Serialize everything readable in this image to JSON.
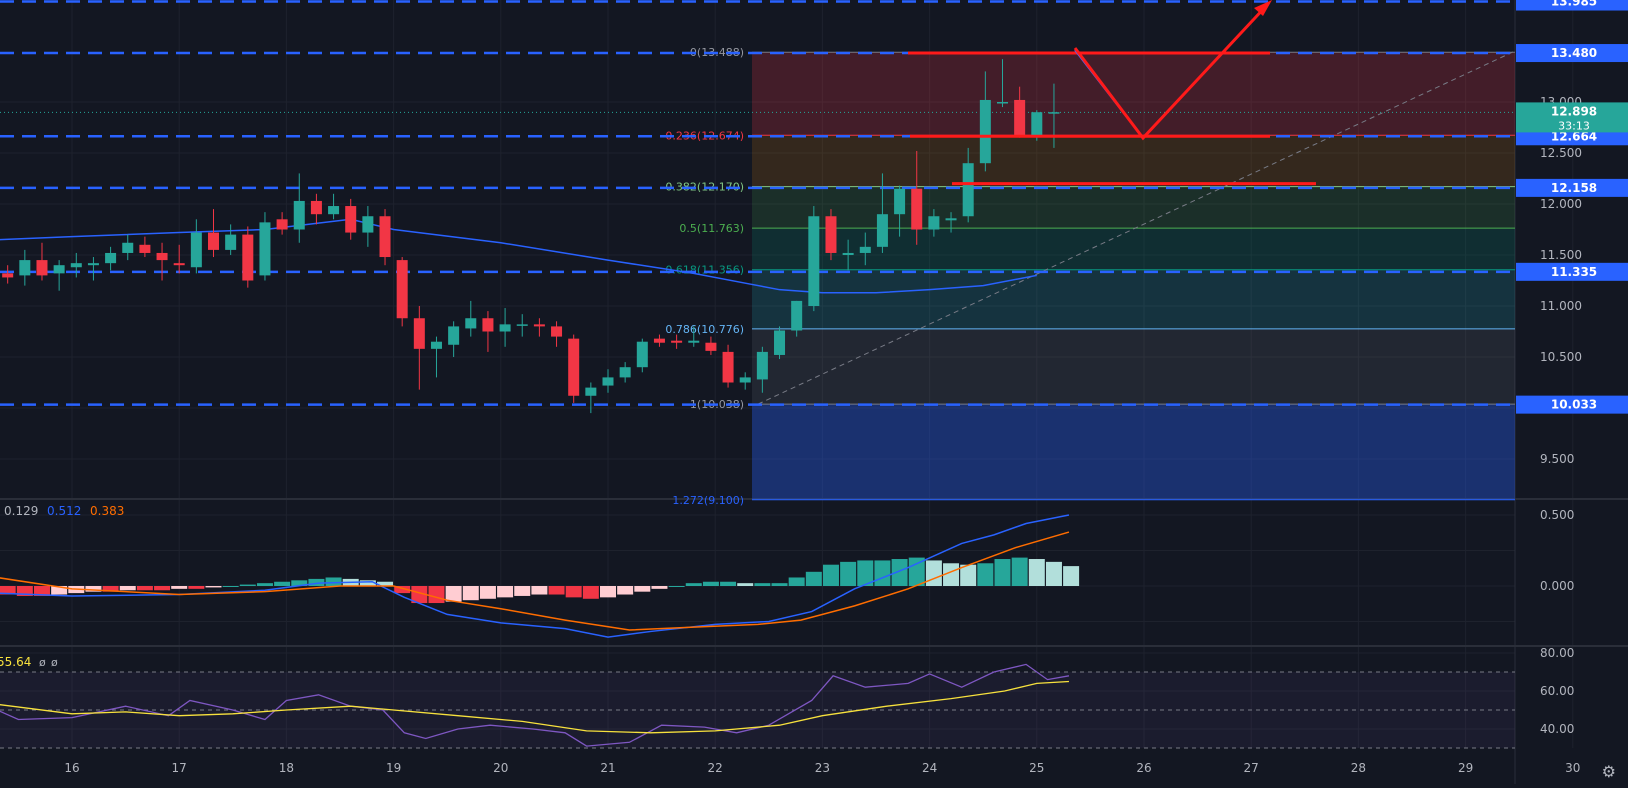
{
  "colors": {
    "background": "#131722",
    "grid": "#1e222d",
    "axis_text": "#b2b5be",
    "candle_up": "#26a69a",
    "candle_down": "#f23645",
    "level_line": "#2962ff",
    "ma_line": "#2962ff",
    "annotation": "#ff1a1a",
    "macd_line": "#2962ff",
    "signal_line": "#ff6d00",
    "rsi_line": "#7e57c2",
    "rsi_ma_line": "#f7e13d"
  },
  "chart_data": [
    {
      "type": "candlestick",
      "panel": "price",
      "x_tick_labels": [
        "16",
        "17",
        "18",
        "19",
        "20",
        "21",
        "22",
        "23",
        "24",
        "25",
        "26",
        "27",
        "28",
        "29",
        "30"
      ],
      "y_tick_labels": [
        "13.000",
        "12.500",
        "12.000",
        "11.500",
        "11.000",
        "10.500",
        "9.500"
      ],
      "ylim": [
        9.2,
        13.98
      ],
      "current_price": "12.898",
      "countdown": "33:13",
      "level_labels": [
        "13.985",
        "13.480",
        "12.664",
        "12.158",
        "11.335",
        "10.033"
      ],
      "levels": [
        13.985,
        13.48,
        12.664,
        12.158,
        11.335,
        10.033
      ],
      "fib_labels": [
        "0(13.488)",
        "0.236(12.674)",
        "0.382(12.170)",
        "0.5(11.763)",
        "0.618(11.356)",
        "0.786(10.776)",
        "1(10.038)",
        "1.272(9.100)"
      ],
      "fib_levels": [
        13.488,
        12.674,
        12.17,
        11.763,
        11.356,
        10.776,
        10.038,
        9.1
      ],
      "candles": [
        {
          "d": 15.4,
          "o": 11.32,
          "h": 11.4,
          "l": 11.22,
          "c": 11.28
        },
        {
          "d": 15.56,
          "o": 11.3,
          "h": 11.55,
          "l": 11.2,
          "c": 11.45
        },
        {
          "d": 15.72,
          "o": 11.45,
          "h": 11.62,
          "l": 11.25,
          "c": 11.3
        },
        {
          "d": 15.88,
          "o": 11.32,
          "h": 11.45,
          "l": 11.15,
          "c": 11.4
        },
        {
          "d": 16.04,
          "o": 11.38,
          "h": 11.52,
          "l": 11.28,
          "c": 11.42
        },
        {
          "d": 16.2,
          "o": 11.4,
          "h": 11.48,
          "l": 11.25,
          "c": 11.42
        },
        {
          "d": 16.36,
          "o": 11.42,
          "h": 11.58,
          "l": 11.35,
          "c": 11.52
        },
        {
          "d": 16.52,
          "o": 11.52,
          "h": 11.7,
          "l": 11.45,
          "c": 11.62
        },
        {
          "d": 16.68,
          "o": 11.6,
          "h": 11.68,
          "l": 11.48,
          "c": 11.52
        },
        {
          "d": 16.84,
          "o": 11.52,
          "h": 11.62,
          "l": 11.25,
          "c": 11.45
        },
        {
          "d": 17.0,
          "o": 11.42,
          "h": 11.6,
          "l": 11.32,
          "c": 11.4
        },
        {
          "d": 17.16,
          "o": 11.38,
          "h": 11.85,
          "l": 11.32,
          "c": 11.72
        },
        {
          "d": 17.32,
          "o": 11.72,
          "h": 11.95,
          "l": 11.48,
          "c": 11.55
        },
        {
          "d": 17.48,
          "o": 11.55,
          "h": 11.8,
          "l": 11.5,
          "c": 11.7
        },
        {
          "d": 17.64,
          "o": 11.7,
          "h": 11.78,
          "l": 11.18,
          "c": 11.25
        },
        {
          "d": 17.8,
          "o": 11.3,
          "h": 11.92,
          "l": 11.25,
          "c": 11.82
        },
        {
          "d": 17.96,
          "o": 11.85,
          "h": 11.92,
          "l": 11.7,
          "c": 11.75
        },
        {
          "d": 18.12,
          "o": 11.75,
          "h": 12.3,
          "l": 11.62,
          "c": 12.03
        },
        {
          "d": 18.28,
          "o": 12.03,
          "h": 12.1,
          "l": 11.8,
          "c": 11.9
        },
        {
          "d": 18.44,
          "o": 11.9,
          "h": 12.1,
          "l": 11.85,
          "c": 11.98
        },
        {
          "d": 18.6,
          "o": 11.98,
          "h": 12.05,
          "l": 11.65,
          "c": 11.72
        },
        {
          "d": 18.76,
          "o": 11.72,
          "h": 11.98,
          "l": 11.58,
          "c": 11.88
        },
        {
          "d": 18.92,
          "o": 11.88,
          "h": 11.95,
          "l": 11.4,
          "c": 11.48
        },
        {
          "d": 19.08,
          "o": 11.45,
          "h": 11.48,
          "l": 10.8,
          "c": 10.88
        },
        {
          "d": 19.24,
          "o": 10.88,
          "h": 11.0,
          "l": 10.18,
          "c": 10.58
        },
        {
          "d": 19.4,
          "o": 10.58,
          "h": 10.7,
          "l": 10.3,
          "c": 10.65
        },
        {
          "d": 19.56,
          "o": 10.62,
          "h": 10.85,
          "l": 10.5,
          "c": 10.8
        },
        {
          "d": 19.72,
          "o": 10.78,
          "h": 11.05,
          "l": 10.7,
          "c": 10.88
        },
        {
          "d": 19.88,
          "o": 10.88,
          "h": 10.95,
          "l": 10.55,
          "c": 10.75
        },
        {
          "d": 20.04,
          "o": 10.75,
          "h": 10.98,
          "l": 10.6,
          "c": 10.82
        },
        {
          "d": 20.2,
          "o": 10.82,
          "h": 10.92,
          "l": 10.7,
          "c": 10.82
        },
        {
          "d": 20.36,
          "o": 10.82,
          "h": 10.88,
          "l": 10.7,
          "c": 10.8
        },
        {
          "d": 20.52,
          "o": 10.8,
          "h": 10.85,
          "l": 10.6,
          "c": 10.7
        },
        {
          "d": 20.68,
          "o": 10.68,
          "h": 10.72,
          "l": 10.05,
          "c": 10.12
        },
        {
          "d": 20.84,
          "o": 10.12,
          "h": 10.25,
          "l": 9.95,
          "c": 10.2
        },
        {
          "d": 21.0,
          "o": 10.22,
          "h": 10.38,
          "l": 10.15,
          "c": 10.3
        },
        {
          "d": 21.16,
          "o": 10.3,
          "h": 10.45,
          "l": 10.25,
          "c": 10.4
        },
        {
          "d": 21.32,
          "o": 10.4,
          "h": 10.68,
          "l": 10.35,
          "c": 10.65
        },
        {
          "d": 21.48,
          "o": 10.68,
          "h": 10.72,
          "l": 10.6,
          "c": 10.64
        },
        {
          "d": 21.64,
          "o": 10.66,
          "h": 10.72,
          "l": 10.58,
          "c": 10.64
        },
        {
          "d": 21.8,
          "o": 10.64,
          "h": 10.8,
          "l": 10.6,
          "c": 10.66
        },
        {
          "d": 21.96,
          "o": 10.64,
          "h": 10.7,
          "l": 10.52,
          "c": 10.56
        },
        {
          "d": 22.12,
          "o": 10.55,
          "h": 10.62,
          "l": 10.2,
          "c": 10.25
        },
        {
          "d": 22.28,
          "o": 10.25,
          "h": 10.35,
          "l": 10.18,
          "c": 10.3
        },
        {
          "d": 22.44,
          "o": 10.28,
          "h": 10.6,
          "l": 10.15,
          "c": 10.55
        },
        {
          "d": 22.6,
          "o": 10.52,
          "h": 10.8,
          "l": 10.48,
          "c": 10.76
        },
        {
          "d": 22.76,
          "o": 10.76,
          "h": 11.05,
          "l": 10.7,
          "c": 11.05
        },
        {
          "d": 22.92,
          "o": 11.0,
          "h": 11.98,
          "l": 10.95,
          "c": 11.88
        },
        {
          "d": 23.08,
          "o": 11.88,
          "h": 11.95,
          "l": 11.45,
          "c": 11.52
        },
        {
          "d": 23.24,
          "o": 11.5,
          "h": 11.65,
          "l": 11.35,
          "c": 11.52
        },
        {
          "d": 23.4,
          "o": 11.52,
          "h": 11.72,
          "l": 11.4,
          "c": 11.58
        },
        {
          "d": 23.56,
          "o": 11.58,
          "h": 12.3,
          "l": 11.52,
          "c": 11.9
        },
        {
          "d": 23.72,
          "o": 11.9,
          "h": 12.18,
          "l": 11.68,
          "c": 12.15
        },
        {
          "d": 23.88,
          "o": 12.15,
          "h": 12.52,
          "l": 11.6,
          "c": 11.75
        },
        {
          "d": 24.04,
          "o": 11.75,
          "h": 11.95,
          "l": 11.68,
          "c": 11.88
        },
        {
          "d": 24.2,
          "o": 11.84,
          "h": 11.92,
          "l": 11.72,
          "c": 11.86
        },
        {
          "d": 24.36,
          "o": 11.88,
          "h": 12.55,
          "l": 11.82,
          "c": 12.4
        },
        {
          "d": 24.52,
          "o": 12.4,
          "h": 13.3,
          "l": 12.32,
          "c": 13.02
        },
        {
          "d": 24.68,
          "o": 13.0,
          "h": 13.42,
          "l": 12.95,
          "c": 13.0
        },
        {
          "d": 24.84,
          "o": 13.02,
          "h": 13.15,
          "l": 12.65,
          "c": 12.66
        },
        {
          "d": 25.0,
          "o": 12.66,
          "h": 12.92,
          "l": 12.62,
          "c": 12.9
        },
        {
          "d": 25.16,
          "o": 12.9,
          "h": 13.18,
          "l": 12.55,
          "c": 12.9
        }
      ]
    },
    {
      "type": "bar",
      "panel": "macd",
      "legend_values": [
        "0.129",
        "0.512",
        "0.383"
      ],
      "y_tick_labels": [
        "0.500",
        "0.000"
      ],
      "ylim": [
        -0.42,
        0.52
      ]
    },
    {
      "type": "line",
      "panel": "rsi",
      "legend_value": "55.64",
      "legend_extra": [
        "ø",
        "ø"
      ],
      "y_tick_labels": [
        "80.00",
        "60.00",
        "40.00"
      ],
      "ylim": [
        30,
        82
      ]
    }
  ]
}
